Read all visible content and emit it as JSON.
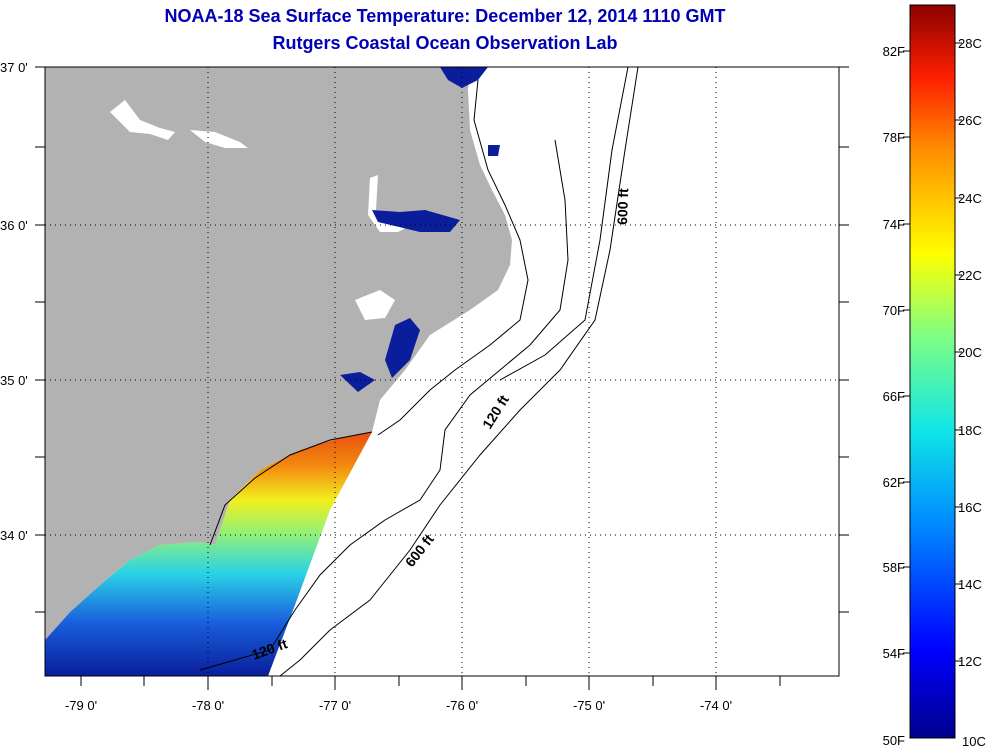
{
  "title_line1": "NOAA-18 Sea Surface Temperature:  December 12, 2014 1110 GMT",
  "title_line2": "Rutgers Coastal Ocean Observation Lab",
  "lat_labels": [
    "37 0'",
    "36 0'",
    "35 0'",
    "34 0'"
  ],
  "lon_labels": [
    "-79 0'",
    "-78 0'",
    "-77 0'",
    "-76 0'",
    "-75 0'",
    "-74 0'"
  ],
  "colorbar": {
    "fahrenheit_labels": [
      "82F",
      "78F",
      "74F",
      "70F",
      "66F",
      "62F",
      "58F",
      "54F",
      "50F"
    ],
    "celsius_labels": [
      "28C",
      "26C",
      "24C",
      "22C",
      "20C",
      "18C",
      "16C",
      "14C",
      "12C",
      "10C"
    ]
  },
  "contour_labels": [
    "600 ft",
    "120 ft",
    "600 ft",
    "120 ft"
  ],
  "colors": {
    "land": "#b2b2b2",
    "title": "#0000b4",
    "estuary": "#0a1e9c"
  }
}
